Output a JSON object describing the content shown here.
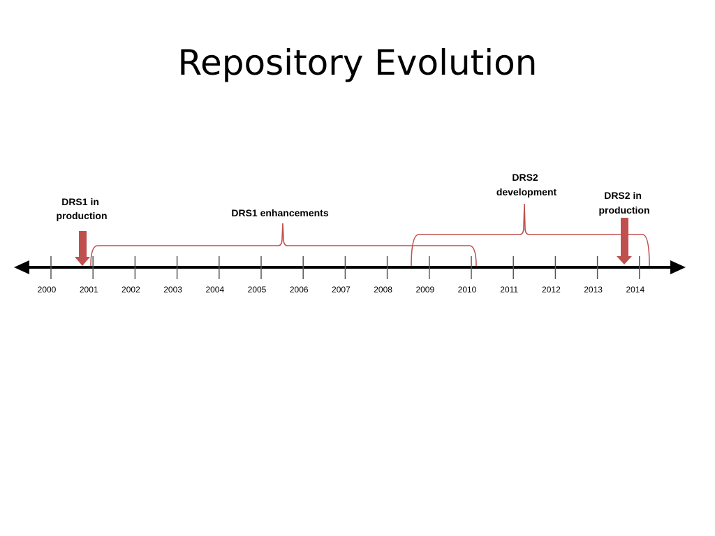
{
  "slide": {
    "title": "Repository Evolution"
  },
  "timeline": {
    "years": [
      "2000",
      "2001",
      "2002",
      "2003",
      "2004",
      "2005",
      "2006",
      "2007",
      "2008",
      "2009",
      "2010",
      "2011",
      "2012",
      "2013",
      "2014"
    ]
  },
  "annotations": {
    "drs1_in_production": [
      "DRS1 in",
      "production"
    ],
    "drs1_enhancements": "DRS1 enhancements",
    "drs2_development": [
      "DRS2",
      "development"
    ],
    "drs2_in_production": [
      "DRS2 in",
      "production"
    ]
  },
  "colors": {
    "accent": "#c0504d",
    "axis": "#000000",
    "tick": "#555555"
  }
}
